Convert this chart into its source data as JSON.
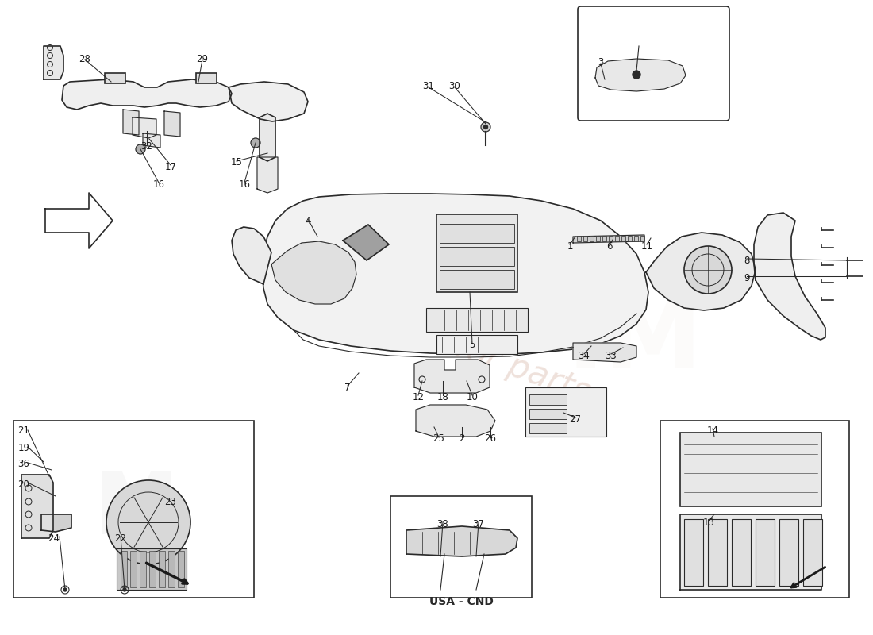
{
  "background_color": "#ffffff",
  "line_color": "#2a2a2a",
  "label_color": "#1a1a1a",
  "watermark_text": "a passion for parts",
  "watermark_color": "#d4b0a0",
  "usa_cnd_label": "USA - CND",
  "fig_width": 11.0,
  "fig_height": 8.0,
  "dpi": 100,
  "lw_main": 1.2,
  "lw_thin": 0.8,
  "label_fontsize": 8.5,
  "part_labels": [
    [
      107,
      725,
      "28"
    ],
    [
      255,
      725,
      "29"
    ],
    [
      185,
      615,
      "32"
    ],
    [
      215,
      590,
      "17"
    ],
    [
      298,
      595,
      "15"
    ],
    [
      200,
      568,
      "16"
    ],
    [
      308,
      568,
      "16"
    ],
    [
      388,
      522,
      "4"
    ],
    [
      540,
      692,
      "31"
    ],
    [
      573,
      692,
      "30"
    ],
    [
      757,
      722,
      "3"
    ],
    [
      718,
      490,
      "1"
    ],
    [
      768,
      490,
      "6"
    ],
    [
      815,
      490,
      "11"
    ],
    [
      941,
      472,
      "8"
    ],
    [
      941,
      450,
      "9"
    ],
    [
      736,
      352,
      "34"
    ],
    [
      770,
      352,
      "33"
    ],
    [
      595,
      365,
      "5"
    ],
    [
      438,
      312,
      "7"
    ],
    [
      527,
      300,
      "12"
    ],
    [
      558,
      300,
      "18"
    ],
    [
      595,
      300,
      "10"
    ],
    [
      553,
      247,
      "25"
    ],
    [
      582,
      247,
      "2"
    ],
    [
      618,
      247,
      "26"
    ],
    [
      725,
      272,
      "27"
    ],
    [
      30,
      258,
      "21"
    ],
    [
      30,
      235,
      "19"
    ],
    [
      30,
      215,
      "36"
    ],
    [
      30,
      190,
      "20"
    ],
    [
      68,
      122,
      "24"
    ],
    [
      152,
      122,
      "22"
    ],
    [
      215,
      167,
      "23"
    ],
    [
      558,
      140,
      "38"
    ],
    [
      603,
      140,
      "37"
    ],
    [
      898,
      258,
      "14"
    ],
    [
      893,
      142,
      "13"
    ]
  ]
}
